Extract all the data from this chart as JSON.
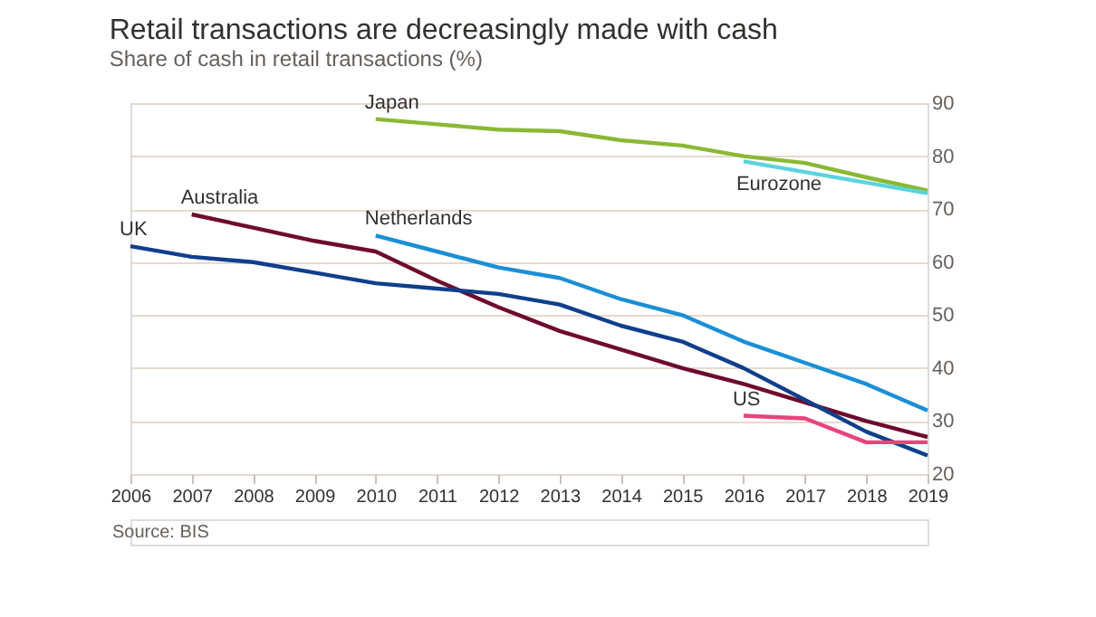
{
  "chart_data": {
    "type": "line",
    "title": "Retail transactions are decreasingly made with cash",
    "subtitle": "Share of cash in retail transactions (%)",
    "series": [
      {
        "name": "Japan",
        "color": "#8ab834",
        "x": [
          2010,
          2011,
          2012,
          2013,
          2014,
          2015,
          2016,
          2017,
          2018,
          2019
        ],
        "values": [
          87,
          86,
          85,
          84.7,
          83,
          82,
          80,
          78.7,
          76,
          73.5
        ]
      },
      {
        "name": "Eurozone",
        "color": "#5ad3dc",
        "x": [
          2016,
          2017,
          2018,
          2019
        ],
        "values": [
          79,
          77,
          75,
          73
        ]
      },
      {
        "name": "Australia",
        "color": "#6e0b2d",
        "x": [
          2007,
          2008,
          2009,
          2010,
          2011,
          2012,
          2013,
          2014,
          2015,
          2016,
          2017,
          2018,
          2019
        ],
        "values": [
          69,
          66.5,
          64,
          62,
          56.5,
          51.5,
          47,
          43.5,
          40,
          37,
          33.5,
          30,
          27
        ]
      },
      {
        "name": "UK",
        "color": "#0f3f8c",
        "x": [
          2006,
          2007,
          2008,
          2009,
          2010,
          2011,
          2012,
          2013,
          2014,
          2015,
          2016,
          2017,
          2018,
          2019
        ],
        "values": [
          63,
          61,
          60,
          58,
          56,
          55,
          54,
          52,
          48,
          45,
          40,
          34,
          28,
          23.5
        ]
      },
      {
        "name": "Netherlands",
        "color": "#1a8fd6",
        "x": [
          2010,
          2011,
          2012,
          2013,
          2014,
          2015,
          2016,
          2017,
          2018,
          2019
        ],
        "values": [
          65,
          62,
          59,
          57,
          53,
          50,
          45,
          41,
          37,
          32
        ]
      },
      {
        "name": "US",
        "color": "#e8457a",
        "x": [
          2016,
          2017,
          2018,
          2019
        ],
        "values": [
          31,
          30.5,
          26,
          26
        ]
      }
    ],
    "xlim": [
      2006,
      2019
    ],
    "xticks": [
      2006,
      2007,
      2008,
      2009,
      2010,
      2011,
      2012,
      2013,
      2014,
      2015,
      2016,
      2017,
      2018,
      2019
    ],
    "ylim": [
      20,
      90
    ],
    "yticks": [
      20,
      30,
      40,
      50,
      60,
      70,
      80,
      90
    ],
    "grid": "y",
    "legend": false,
    "marker": "none",
    "line_style": "solid",
    "annotations": [
      "Source: BIS"
    ]
  }
}
